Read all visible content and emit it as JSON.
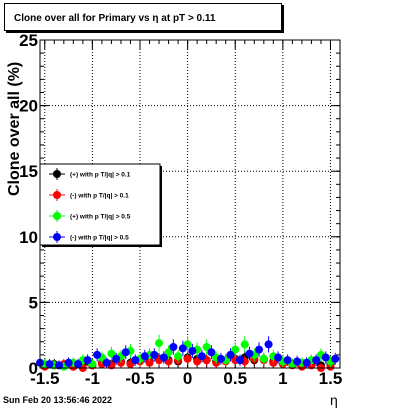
{
  "title": "Clone  over all for Primary vs  η at pT > 0.11",
  "footer": "Sun Feb 20 13:56:46 2022",
  "chart_data": {
    "type": "scatter",
    "title": "Clone  over all for Primary vs  η at pT > 0.11",
    "xlabel": "η",
    "ylabel": "Clone  over all (%)",
    "xlim": [
      -1.55,
      1.6
    ],
    "ylim": [
      0,
      25
    ],
    "xticks": [
      "-1.5",
      "-1",
      "-0.5",
      "0",
      "0.5",
      "1",
      "1.5"
    ],
    "yticks": [
      "0",
      "5",
      "10",
      "15",
      "20",
      "25"
    ],
    "grid": true,
    "legend_position": "middle-left",
    "series": [
      {
        "name": "(+) with p T/|q| > 0.1",
        "color": "#000000",
        "x": [
          -1.5,
          -1.4,
          -1.3,
          -1.2,
          -1.1,
          -1.0,
          -0.9,
          -0.8,
          -0.7,
          -0.6,
          -0.5,
          -0.4,
          -0.3,
          -0.2,
          -0.1,
          0.0,
          0.1,
          0.2,
          0.3,
          0.4,
          0.5,
          0.6,
          0.7,
          0.8,
          0.9,
          1.0,
          1.1,
          1.2,
          1.3,
          1.4,
          1.5
        ],
        "y": [
          0.2,
          0.3,
          0.2,
          0.1,
          0.3,
          0.2,
          0.4,
          0.3,
          0.5,
          0.4,
          0.6,
          0.5,
          0.7,
          0.6,
          0.5,
          0.8,
          0.7,
          0.6,
          0.5,
          0.6,
          0.7,
          0.8,
          0.6,
          0.7,
          0.5,
          0.4,
          0.3,
          0.2,
          0.3,
          0.2,
          0.3
        ]
      },
      {
        "name": "(-) with p T/|q| > 0.1",
        "color": "#ff0000",
        "x": [
          -1.5,
          -1.4,
          -1.3,
          -1.2,
          -1.1,
          -1.0,
          -0.9,
          -0.8,
          -0.7,
          -0.6,
          -0.5,
          -0.4,
          -0.3,
          -0.2,
          -0.1,
          0.0,
          0.1,
          0.2,
          0.3,
          0.4,
          0.5,
          0.6,
          0.7,
          0.8,
          0.9,
          1.0,
          1.1,
          1.2,
          1.3,
          1.4,
          1.5
        ],
        "y": [
          0.1,
          0.2,
          0.3,
          0.1,
          0.0,
          0.2,
          0.3,
          0.2,
          0.4,
          0.3,
          0.5,
          0.4,
          0.6,
          0.5,
          0.6,
          0.7,
          0.5,
          0.6,
          0.4,
          0.5,
          0.6,
          0.5,
          0.7,
          0.6,
          0.4,
          0.3,
          0.2,
          0.1,
          0.2,
          0.0,
          0.1
        ]
      },
      {
        "name": "(+) with p T/|q| > 0.5",
        "color": "#00ff00",
        "x": [
          -1.5,
          -1.4,
          -1.3,
          -1.2,
          -1.1,
          -1.0,
          -0.9,
          -0.8,
          -0.7,
          -0.6,
          -0.5,
          -0.4,
          -0.3,
          -0.2,
          -0.1,
          0.0,
          0.1,
          0.2,
          0.3,
          0.4,
          0.5,
          0.6,
          0.7,
          0.8,
          0.9,
          1.0,
          1.1,
          1.2,
          1.3,
          1.4,
          1.5
        ],
        "y": [
          0.3,
          0.2,
          0.1,
          0.4,
          0.6,
          0.3,
          0.8,
          1.1,
          0.9,
          1.3,
          0.7,
          1.0,
          1.9,
          1.2,
          0.9,
          1.8,
          1.4,
          1.6,
          0.8,
          0.6,
          1.4,
          1.8,
          1.0,
          0.7,
          0.9,
          0.5,
          0.3,
          0.4,
          0.6,
          1.0,
          0.5
        ]
      },
      {
        "name": "(-) with p T/|q| > 0.5",
        "color": "#0000ff",
        "x": [
          -1.55,
          -1.45,
          -1.35,
          -1.25,
          -1.15,
          -1.05,
          -0.95,
          -0.85,
          -0.75,
          -0.65,
          -0.55,
          -0.45,
          -0.35,
          -0.25,
          -0.15,
          -0.05,
          0.05,
          0.15,
          0.25,
          0.35,
          0.45,
          0.55,
          0.65,
          0.75,
          0.85,
          0.95,
          1.05,
          1.15,
          1.25,
          1.35,
          1.45,
          1.55
        ],
        "y": [
          0.4,
          0.3,
          0.2,
          0.4,
          0.3,
          0.6,
          1.0,
          0.4,
          0.7,
          1.2,
          0.6,
          0.9,
          1.0,
          0.8,
          1.6,
          1.5,
          1.3,
          0.9,
          1.2,
          0.7,
          1.0,
          0.6,
          1.1,
          1.4,
          1.8,
          0.8,
          0.6,
          0.5,
          0.4,
          0.6,
          0.8,
          0.7
        ]
      }
    ]
  }
}
